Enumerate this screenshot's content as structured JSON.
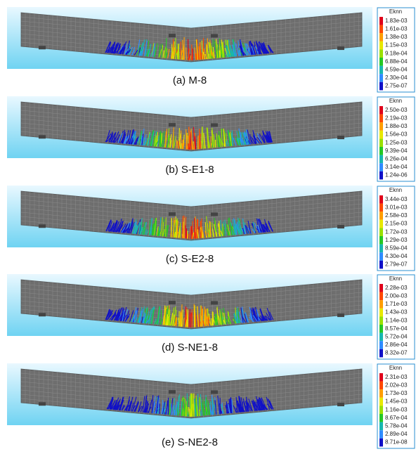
{
  "panels": [
    {
      "caption": "(a) M-8",
      "legend": {
        "title": "Eknn",
        "labels": [
          "1.83e-03",
          "1.61e-03",
          "1.38e-03",
          "1.15e-03",
          "9.18e-04",
          "6.88e-04",
          "4.59e-04",
          "2.30e-04",
          "2.75e-07"
        ]
      }
    },
    {
      "caption": "(b) S-E1-8",
      "legend": {
        "title": "Eknn",
        "labels": [
          "2.50e-03",
          "2.19e-03",
          "1.88e-03",
          "1.56e-03",
          "1.25e-03",
          "9.39e-04",
          "6.26e-04",
          "3.14e-04",
          "1.24e-06"
        ]
      }
    },
    {
      "caption": "(c) S-E2-8",
      "legend": {
        "title": "Eknn",
        "labels": [
          "3.44e-03",
          "3.01e-03",
          "2.58e-03",
          "2.15e-03",
          "1.72e-03",
          "1.29e-03",
          "8.59e-04",
          "4.30e-04",
          "2.79e-07"
        ]
      }
    },
    {
      "caption": "(d) S-NE1-8",
      "legend": {
        "title": "Eknn",
        "labels": [
          "2.28e-03",
          "2.00e-03",
          "1.71e-03",
          "1.43e-03",
          "1.14e-03",
          "8.57e-04",
          "5.72e-04",
          "2.86e-04",
          "8.32e-07"
        ]
      }
    },
    {
      "caption": "(e) S-NE2-8",
      "legend": {
        "title": "Eknn",
        "labels": [
          "2.31e-03",
          "2.02e-03",
          "1.73e-03",
          "1.45e-03",
          "1.16e-03",
          "8.67e-04",
          "5.78e-04",
          "2.89e-04",
          "8.71e-08"
        ]
      }
    }
  ]
}
